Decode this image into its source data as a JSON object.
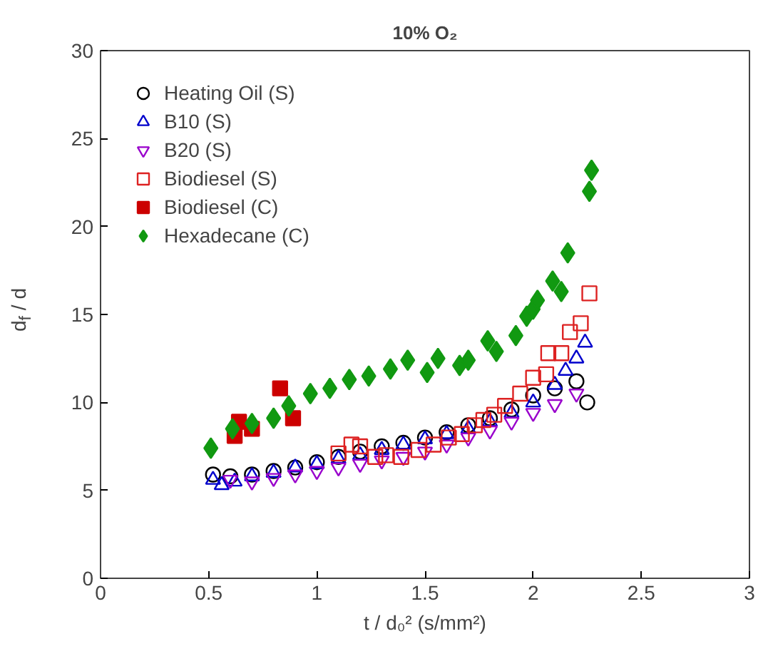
{
  "chart_data": {
    "type": "scatter",
    "title": "10% O₂",
    "xlabel": "t / d₀² (s/mm²)",
    "ylabel": "d$_{f}$ / d",
    "xlim": [
      0,
      3
    ],
    "ylim": [
      0,
      30
    ],
    "xticks": [
      0,
      0.5,
      1,
      1.5,
      2,
      2.5,
      3
    ],
    "yticks": [
      0,
      5,
      10,
      15,
      20,
      25,
      30
    ],
    "grid": false,
    "legend": "top left",
    "series": [
      {
        "name": "Heating Oil (S)",
        "color": "#000000",
        "marker": "circle",
        "x": [
          0.52,
          0.6,
          0.7,
          0.8,
          0.9,
          1.0,
          1.1,
          1.2,
          1.3,
          1.4,
          1.5,
          1.6,
          1.7,
          1.8,
          1.9,
          2.0,
          2.1,
          2.2,
          2.25
        ],
        "values": [
          5.9,
          5.8,
          5.9,
          6.1,
          6.3,
          6.6,
          6.9,
          7.2,
          7.5,
          7.7,
          8.0,
          8.3,
          8.7,
          9.1,
          9.6,
          10.4,
          10.8,
          11.2,
          10.0
        ]
      },
      {
        "name": "B10 (S)",
        "color": "#0000cc",
        "marker": "triangle",
        "x": [
          0.52,
          0.56,
          0.62,
          0.7,
          0.8,
          0.9,
          1.0,
          1.1,
          1.2,
          1.3,
          1.4,
          1.5,
          1.6,
          1.7,
          1.8,
          1.9,
          2.0,
          2.1,
          2.15,
          2.2,
          2.24
        ],
        "values": [
          5.6,
          5.3,
          5.5,
          5.8,
          6.0,
          6.3,
          6.5,
          6.8,
          7.0,
          7.3,
          7.6,
          7.9,
          8.2,
          8.5,
          8.9,
          9.4,
          10.0,
          11.0,
          11.8,
          12.5,
          13.4
        ]
      },
      {
        "name": "B20 (S)",
        "color": "#9900cc",
        "marker": "triangle",
        "x": [
          0.6,
          0.7,
          0.8,
          0.9,
          1.0,
          1.1,
          1.2,
          1.3,
          1.4,
          1.5,
          1.6,
          1.7,
          1.8,
          1.9,
          2.0,
          2.1,
          2.2
        ],
        "values": [
          5.6,
          5.5,
          5.7,
          5.9,
          6.1,
          6.3,
          6.5,
          6.7,
          6.9,
          7.2,
          7.6,
          8.0,
          8.4,
          8.9,
          9.4,
          9.9,
          10.5
        ]
      },
      {
        "name": "Biodiesel (S)",
        "color": "#dd2222",
        "marker": "square",
        "x": [
          1.1,
          1.16,
          1.2,
          1.27,
          1.32,
          1.39,
          1.47,
          1.54,
          1.61,
          1.67,
          1.73,
          1.77,
          1.82,
          1.87,
          1.94,
          2.0,
          2.06,
          2.07,
          2.13,
          2.17,
          2.22,
          2.26
        ],
        "values": [
          7.1,
          7.6,
          7.5,
          6.9,
          7.0,
          6.9,
          7.3,
          7.6,
          8.0,
          8.2,
          8.7,
          9.0,
          9.3,
          9.8,
          10.5,
          11.4,
          11.6,
          12.8,
          12.8,
          14.0,
          14.5,
          16.2
        ]
      },
      {
        "name": "Biodiesel (C)",
        "color": "#cc0000",
        "marker": "square_filled",
        "x": [
          0.62,
          0.64,
          0.7,
          0.83,
          0.89
        ],
        "values": [
          8.1,
          8.9,
          8.5,
          10.8,
          9.1
        ]
      },
      {
        "name": "Hexadecane (C)",
        "color": "#119911",
        "marker": "diamond_filled",
        "x": [
          0.51,
          0.61,
          0.7,
          0.8,
          0.87,
          0.97,
          1.06,
          1.15,
          1.24,
          1.34,
          1.42,
          1.51,
          1.56,
          1.66,
          1.7,
          1.79,
          1.83,
          1.92,
          1.97,
          2.0,
          2.02,
          2.09,
          2.13,
          2.16,
          2.26,
          2.27
        ],
        "values": [
          7.4,
          8.5,
          8.8,
          9.1,
          9.8,
          10.5,
          10.8,
          11.3,
          11.5,
          11.9,
          12.4,
          11.7,
          12.5,
          12.1,
          12.4,
          13.5,
          12.9,
          13.8,
          14.9,
          15.3,
          15.8,
          16.9,
          16.3,
          18.5,
          22.0,
          23.2
        ]
      }
    ]
  }
}
